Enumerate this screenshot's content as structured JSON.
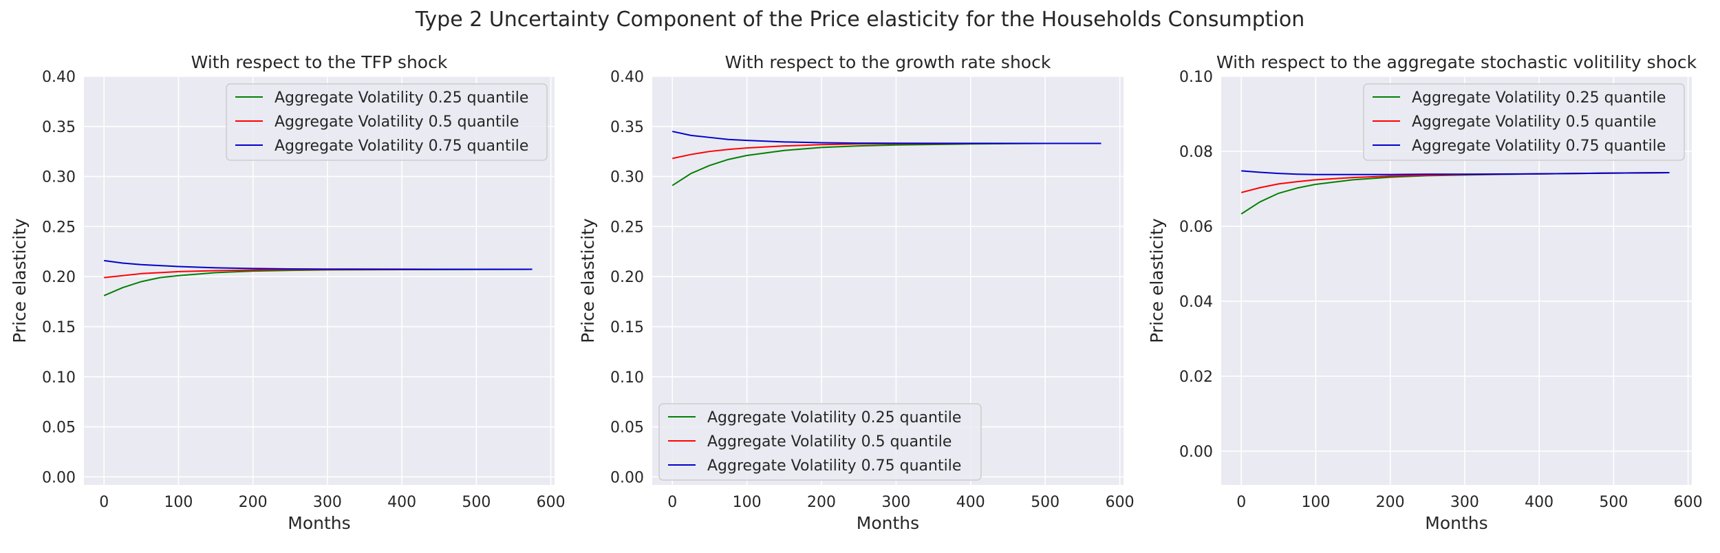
{
  "figure": {
    "suptitle": "Type 2 Uncertainty Component of the Price elasticity for the Households Consumption"
  },
  "chart_data": [
    {
      "type": "line",
      "title": "With respect to the TFP shock",
      "xlabel": "Months",
      "ylabel": "Price elasticity",
      "xlim": [
        -27,
        605
      ],
      "ylim": [
        -0.008,
        0.4
      ],
      "xticks": [
        0,
        100,
        200,
        300,
        400,
        500,
        600
      ],
      "yticks": [
        0.0,
        0.05,
        0.1,
        0.15,
        0.2,
        0.25,
        0.3,
        0.35,
        0.4
      ],
      "ytick_labels": [
        "0.00",
        "0.05",
        "0.10",
        "0.15",
        "0.20",
        "0.25",
        "0.30",
        "0.35",
        "0.40"
      ],
      "grid": true,
      "legend_position": "upper right",
      "series": [
        {
          "name": "Aggregate Volatility 0.25 quantile",
          "color": "#008000",
          "x": [
            0,
            25,
            50,
            75,
            100,
            150,
            200,
            250,
            300,
            400,
            500,
            575
          ],
          "y": [
            0.181,
            0.189,
            0.195,
            0.199,
            0.201,
            0.204,
            0.2055,
            0.2062,
            0.2067,
            0.207,
            0.2072,
            0.2073
          ]
        },
        {
          "name": "Aggregate Volatility 0.5 quantile",
          "color": "#ff0000",
          "x": [
            0,
            25,
            50,
            75,
            100,
            150,
            200,
            250,
            300,
            400,
            500,
            575
          ],
          "y": [
            0.199,
            0.201,
            0.203,
            0.204,
            0.205,
            0.206,
            0.2066,
            0.207,
            0.2071,
            0.2072,
            0.2073,
            0.2073
          ]
        },
        {
          "name": "Aggregate Volatility 0.75 quantile",
          "color": "#0000cd",
          "x": [
            0,
            25,
            50,
            75,
            100,
            150,
            200,
            250,
            300,
            400,
            500,
            575
          ],
          "y": [
            0.216,
            0.2135,
            0.212,
            0.211,
            0.2101,
            0.2088,
            0.2081,
            0.2077,
            0.2075,
            0.2074,
            0.2073,
            0.2073
          ]
        }
      ]
    },
    {
      "type": "line",
      "title": "With respect to the growth rate shock",
      "xlabel": "Months",
      "ylabel": "Price elasticity",
      "xlim": [
        -27,
        605
      ],
      "ylim": [
        -0.008,
        0.4
      ],
      "xticks": [
        0,
        100,
        200,
        300,
        400,
        500,
        600
      ],
      "yticks": [
        0.0,
        0.05,
        0.1,
        0.15,
        0.2,
        0.25,
        0.3,
        0.35,
        0.4
      ],
      "ytick_labels": [
        "0.00",
        "0.05",
        "0.10",
        "0.15",
        "0.20",
        "0.25",
        "0.30",
        "0.35",
        "0.40"
      ],
      "grid": true,
      "legend_position": "lower left",
      "series": [
        {
          "name": "Aggregate Volatility 0.25 quantile",
          "color": "#008000",
          "x": [
            0,
            25,
            50,
            75,
            100,
            150,
            200,
            250,
            300,
            400,
            500,
            575
          ],
          "y": [
            0.291,
            0.303,
            0.311,
            0.317,
            0.321,
            0.326,
            0.329,
            0.3305,
            0.3315,
            0.3325,
            0.333,
            0.333
          ]
        },
        {
          "name": "Aggregate Volatility 0.5 quantile",
          "color": "#ff0000",
          "x": [
            0,
            25,
            50,
            75,
            100,
            150,
            200,
            250,
            300,
            400,
            500,
            575
          ],
          "y": [
            0.318,
            0.322,
            0.325,
            0.327,
            0.3285,
            0.3305,
            0.3318,
            0.3325,
            0.3328,
            0.333,
            0.333,
            0.333
          ]
        },
        {
          "name": "Aggregate Volatility 0.75 quantile",
          "color": "#0000cd",
          "x": [
            0,
            25,
            50,
            75,
            100,
            150,
            200,
            250,
            300,
            400,
            500,
            575
          ],
          "y": [
            0.345,
            0.341,
            0.339,
            0.337,
            0.336,
            0.3345,
            0.3337,
            0.3333,
            0.3332,
            0.3331,
            0.333,
            0.333
          ]
        }
      ]
    },
    {
      "type": "line",
      "title": "With respect to the aggregate stochastic volitility shock",
      "xlabel": "Months",
      "ylabel": "Price elasticity",
      "xlim": [
        -27,
        605
      ],
      "ylim": [
        -0.009,
        0.1
      ],
      "xticks": [
        0,
        100,
        200,
        300,
        400,
        500,
        600
      ],
      "yticks": [
        0.0,
        0.02,
        0.04,
        0.06,
        0.08,
        0.1
      ],
      "ytick_labels": [
        "0.00",
        "0.02",
        "0.04",
        "0.06",
        "0.08",
        "0.10"
      ],
      "grid": true,
      "legend_position": "upper right",
      "series": [
        {
          "name": "Aggregate Volatility 0.25 quantile",
          "color": "#008000",
          "x": [
            0,
            25,
            50,
            75,
            100,
            150,
            200,
            250,
            300,
            400,
            500,
            575
          ],
          "y": [
            0.0633,
            0.0665,
            0.0688,
            0.0702,
            0.0712,
            0.0724,
            0.0731,
            0.0735,
            0.0737,
            0.074,
            0.0742,
            0.0743
          ]
        },
        {
          "name": "Aggregate Volatility 0.5 quantile",
          "color": "#ff0000",
          "x": [
            0,
            25,
            50,
            75,
            100,
            150,
            200,
            250,
            300,
            400,
            500,
            575
          ],
          "y": [
            0.069,
            0.0703,
            0.0713,
            0.0719,
            0.0724,
            0.073,
            0.0734,
            0.0736,
            0.0738,
            0.074,
            0.0742,
            0.0743
          ]
        },
        {
          "name": "Aggregate Volatility 0.75 quantile",
          "color": "#0000cd",
          "x": [
            0,
            25,
            50,
            75,
            100,
            150,
            200,
            250,
            300,
            400,
            500,
            575
          ],
          "y": [
            0.0748,
            0.0744,
            0.0741,
            0.0739,
            0.0738,
            0.0738,
            0.0738,
            0.0739,
            0.0739,
            0.074,
            0.0742,
            0.0743
          ]
        }
      ]
    }
  ]
}
